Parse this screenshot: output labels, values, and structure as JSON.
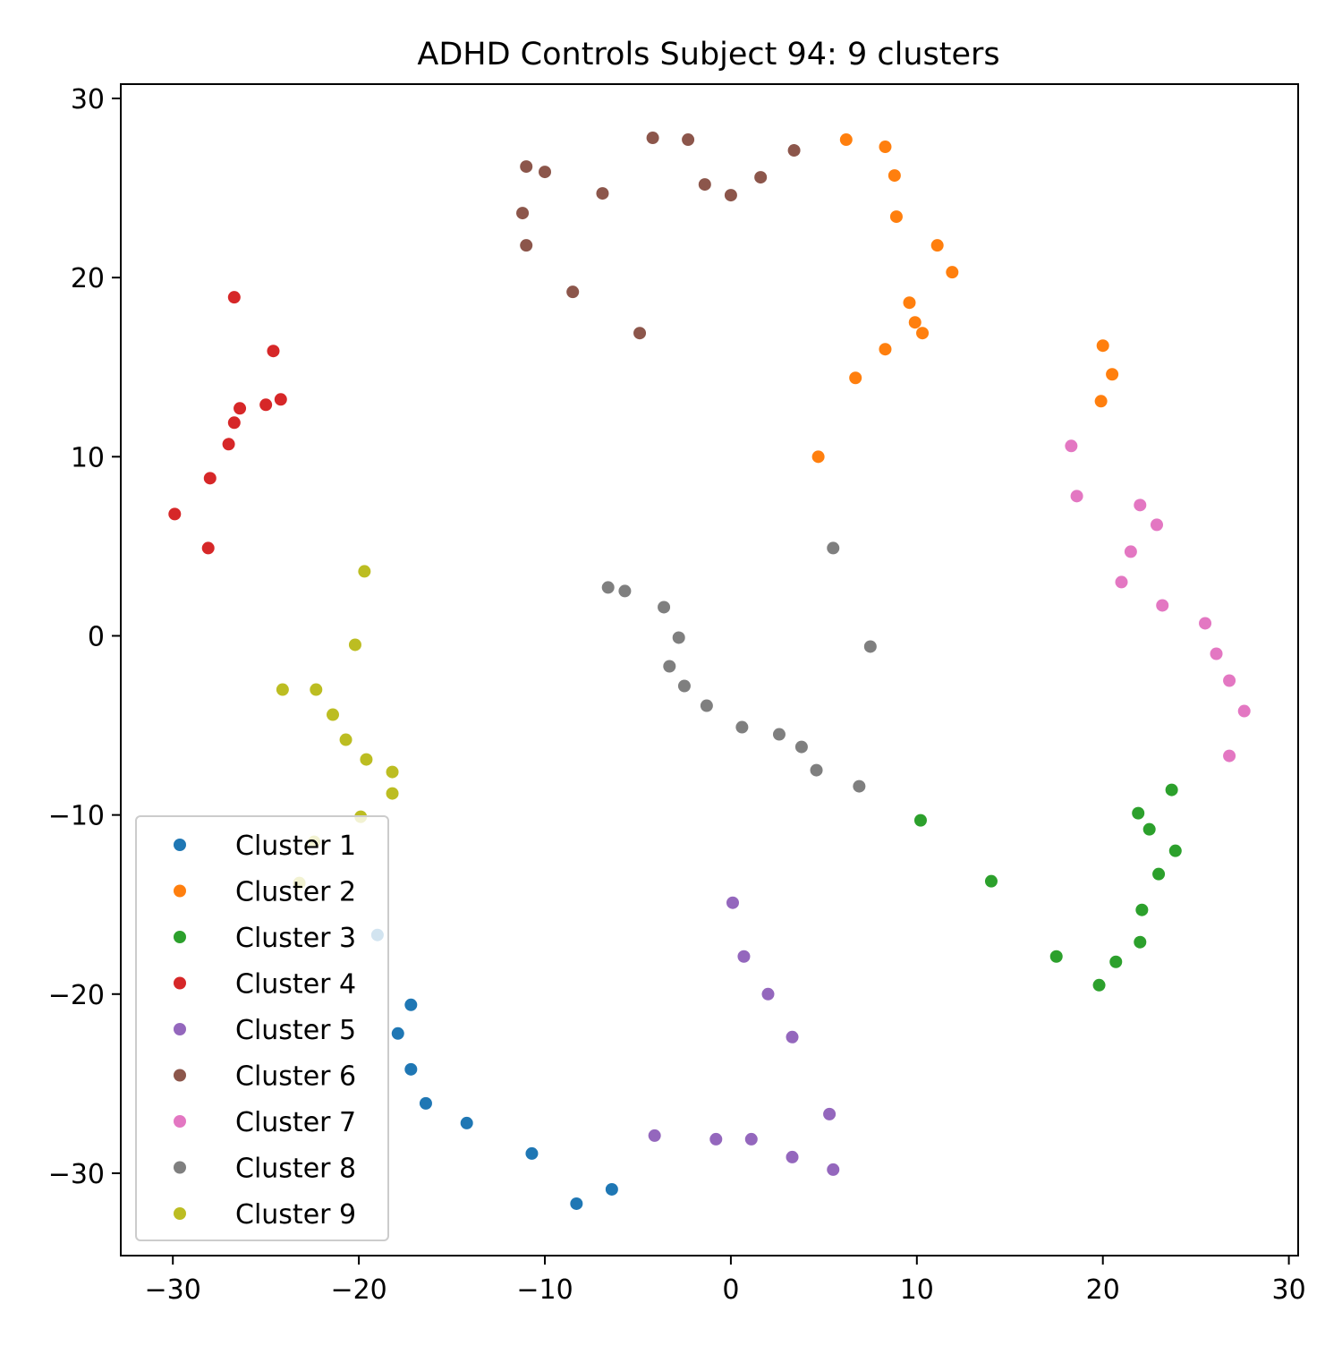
{
  "chart_data": {
    "type": "scatter",
    "title": "ADHD Controls Subject 94: 9 clusters",
    "xlabel": "",
    "ylabel": "",
    "xlim": [
      -32.8,
      30.5
    ],
    "ylim": [
      -34.6,
      30.8
    ],
    "xticks": [
      -30,
      -20,
      -10,
      0,
      10,
      20,
      30
    ],
    "yticks": [
      -30,
      -20,
      -10,
      0,
      10,
      20,
      30
    ],
    "xtick_labels": [
      "−30",
      "−20",
      "−10",
      "0",
      "10",
      "20",
      "30"
    ],
    "ytick_labels": [
      "−30",
      "−20",
      "−10",
      "0",
      "10",
      "20",
      "30"
    ],
    "grid": false,
    "legend_position": "lower-left",
    "series": [
      {
        "name": "Cluster 1",
        "color": "#1f77b4",
        "points": [
          [
            -19.0,
            -16.7
          ],
          [
            -17.2,
            -20.6
          ],
          [
            -17.9,
            -22.2
          ],
          [
            -17.2,
            -24.2
          ],
          [
            -16.4,
            -26.1
          ],
          [
            -14.2,
            -27.2
          ],
          [
            -10.7,
            -28.9
          ],
          [
            -8.3,
            -31.7
          ],
          [
            -6.4,
            -30.9
          ]
        ]
      },
      {
        "name": "Cluster 2",
        "color": "#ff7f0e",
        "points": [
          [
            6.2,
            27.7
          ],
          [
            8.3,
            27.3
          ],
          [
            8.8,
            25.7
          ],
          [
            8.9,
            23.4
          ],
          [
            11.1,
            21.8
          ],
          [
            11.9,
            20.3
          ],
          [
            9.6,
            18.6
          ],
          [
            9.9,
            17.5
          ],
          [
            10.3,
            16.9
          ],
          [
            8.3,
            16.0
          ],
          [
            6.7,
            14.4
          ],
          [
            4.7,
            10.0
          ],
          [
            20.0,
            16.2
          ],
          [
            20.5,
            14.6
          ],
          [
            19.9,
            13.1
          ]
        ]
      },
      {
        "name": "Cluster 3",
        "color": "#2ca02c",
        "points": [
          [
            23.7,
            -8.6
          ],
          [
            21.9,
            -9.9
          ],
          [
            22.5,
            -10.8
          ],
          [
            23.9,
            -12.0
          ],
          [
            10.2,
            -10.3
          ],
          [
            14.0,
            -13.7
          ],
          [
            23.0,
            -13.3
          ],
          [
            22.1,
            -15.3
          ],
          [
            22.0,
            -17.1
          ],
          [
            17.5,
            -17.9
          ],
          [
            20.7,
            -18.2
          ],
          [
            19.8,
            -19.5
          ]
        ]
      },
      {
        "name": "Cluster 4",
        "color": "#d62728",
        "points": [
          [
            -26.7,
            18.9
          ],
          [
            -24.6,
            15.9
          ],
          [
            -24.2,
            13.2
          ],
          [
            -26.4,
            12.7
          ],
          [
            -25.0,
            12.9
          ],
          [
            -26.7,
            11.9
          ],
          [
            -27.0,
            10.7
          ],
          [
            -28.0,
            8.8
          ],
          [
            -29.9,
            6.8
          ],
          [
            -28.1,
            4.9
          ]
        ]
      },
      {
        "name": "Cluster 5",
        "color": "#9467bd",
        "points": [
          [
            0.1,
            -14.9
          ],
          [
            0.7,
            -17.9
          ],
          [
            2.0,
            -20.0
          ],
          [
            3.3,
            -22.4
          ],
          [
            5.3,
            -26.7
          ],
          [
            -4.1,
            -27.9
          ],
          [
            -0.8,
            -28.1
          ],
          [
            1.1,
            -28.1
          ],
          [
            3.3,
            -29.1
          ],
          [
            5.5,
            -29.8
          ]
        ]
      },
      {
        "name": "Cluster 6",
        "color": "#8c564b",
        "points": [
          [
            -4.2,
            27.8
          ],
          [
            -2.3,
            27.7
          ],
          [
            -11.0,
            26.2
          ],
          [
            -10.0,
            25.9
          ],
          [
            3.4,
            27.1
          ],
          [
            -6.9,
            24.7
          ],
          [
            -1.4,
            25.2
          ],
          [
            0.0,
            24.6
          ],
          [
            1.6,
            25.6
          ],
          [
            -11.2,
            23.6
          ],
          [
            -11.0,
            21.8
          ],
          [
            -8.5,
            19.2
          ],
          [
            -4.9,
            16.9
          ]
        ]
      },
      {
        "name": "Cluster 7",
        "color": "#e377c2",
        "points": [
          [
            18.3,
            10.6
          ],
          [
            18.6,
            7.8
          ],
          [
            22.0,
            7.3
          ],
          [
            22.9,
            6.2
          ],
          [
            21.5,
            4.7
          ],
          [
            21.0,
            3.0
          ],
          [
            23.2,
            1.7
          ],
          [
            25.5,
            0.7
          ],
          [
            26.1,
            -1.0
          ],
          [
            26.8,
            -2.5
          ],
          [
            27.6,
            -4.2
          ],
          [
            26.8,
            -6.7
          ]
        ]
      },
      {
        "name": "Cluster 8",
        "color": "#7f7f7f",
        "points": [
          [
            5.5,
            4.9
          ],
          [
            -6.6,
            2.7
          ],
          [
            -5.7,
            2.5
          ],
          [
            -3.6,
            1.6
          ],
          [
            -2.8,
            -0.1
          ],
          [
            7.5,
            -0.6
          ],
          [
            -3.3,
            -1.7
          ],
          [
            -2.5,
            -2.8
          ],
          [
            -1.3,
            -3.9
          ],
          [
            0.6,
            -5.1
          ],
          [
            2.6,
            -5.5
          ],
          [
            3.8,
            -6.2
          ],
          [
            4.6,
            -7.5
          ],
          [
            6.9,
            -8.4
          ]
        ]
      },
      {
        "name": "Cluster 9",
        "color": "#bcbd22",
        "points": [
          [
            -19.7,
            3.6
          ],
          [
            -20.2,
            -0.5
          ],
          [
            -24.1,
            -3.0
          ],
          [
            -22.3,
            -3.0
          ],
          [
            -21.4,
            -4.4
          ],
          [
            -20.7,
            -5.8
          ],
          [
            -19.6,
            -6.9
          ],
          [
            -18.2,
            -7.6
          ],
          [
            -18.2,
            -8.8
          ],
          [
            -19.9,
            -10.1
          ],
          [
            -22.4,
            -11.5
          ],
          [
            -23.2,
            -13.8
          ]
        ]
      }
    ]
  }
}
